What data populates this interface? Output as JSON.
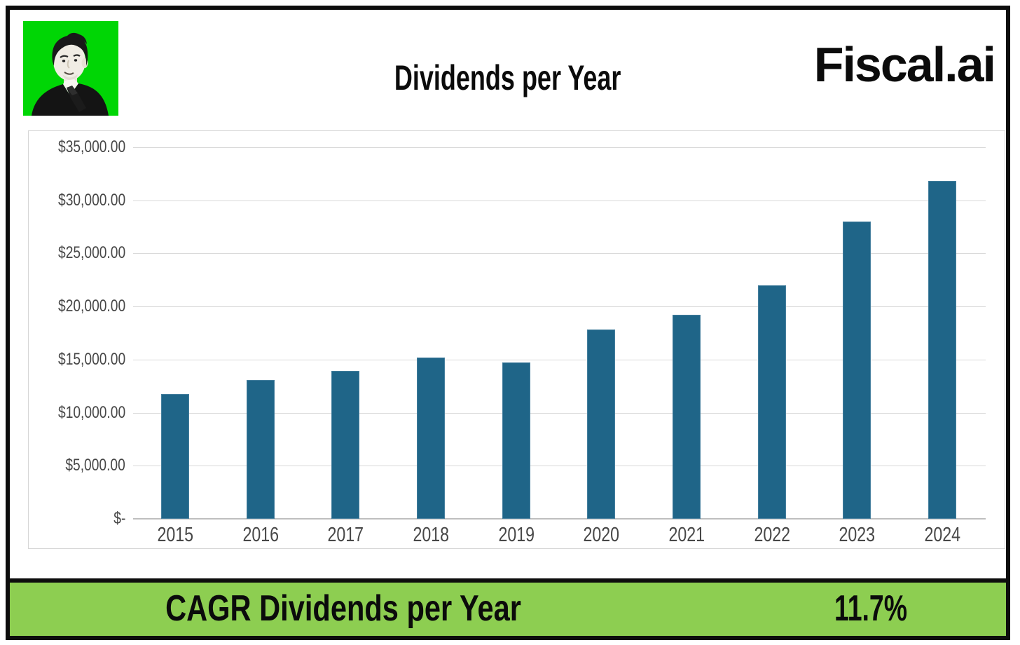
{
  "header": {
    "title": "Dividends per Year",
    "brand": "Fiscal.ai"
  },
  "chart_data": {
    "type": "bar",
    "title": "Dividends per Year",
    "categories": [
      "2015",
      "2016",
      "2017",
      "2018",
      "2019",
      "2020",
      "2021",
      "2022",
      "2023",
      "2024"
    ],
    "values": [
      11750,
      13100,
      13950,
      15200,
      14750,
      17850,
      19200,
      22000,
      28000,
      31800
    ],
    "xlabel": "",
    "ylabel": "",
    "ylim": [
      0,
      35000
    ],
    "ytick_step": 5000,
    "ytick_labels_top_to_bottom": [
      "$35,000.00",
      "$30,000.00",
      "$25,000.00",
      "$20,000.00",
      "$15,000.00",
      "$10,000.00",
      "$5,000.00",
      "$-"
    ],
    "grid": true,
    "legend": false,
    "bar_color": "#1f6588"
  },
  "footer": {
    "label": "CAGR Dividends per Year",
    "value": "11.7%"
  },
  "colors": {
    "frame_black": "#0d0d0d",
    "bar_blue": "#1f6588",
    "gridline_gray": "#d9d9d9",
    "axis_gray": "#bfbfbf",
    "label_gray": "#474747",
    "banner_green": "#8dce51",
    "avatar_green": "#00d605"
  },
  "icons": {
    "avatar": "author-portrait-photo"
  }
}
